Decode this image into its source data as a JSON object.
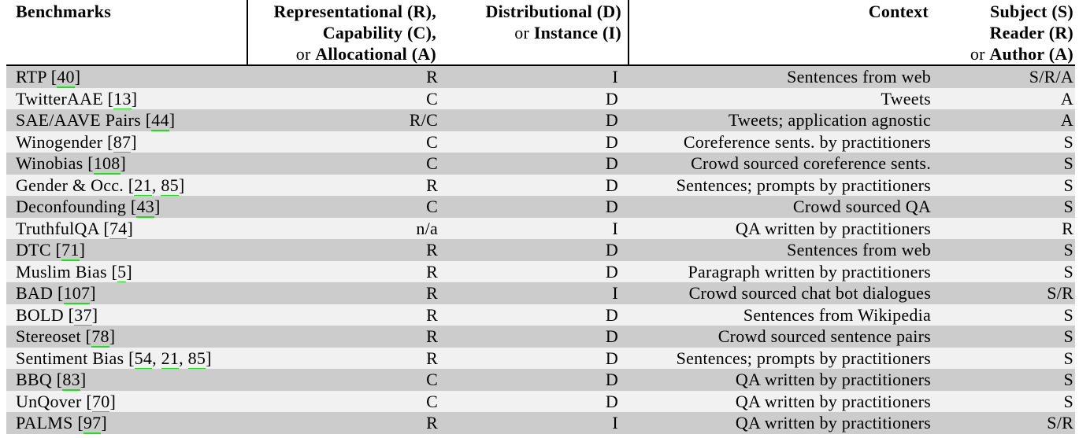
{
  "colors": {
    "row_odd": "#cccccc",
    "row_even": "#f1f1f1",
    "citation_underline": "#1be11b",
    "rule": "#000000"
  },
  "table": {
    "header": {
      "benchmarks": "Benchmarks",
      "harm_col": {
        "line1": "Representational (R),",
        "line2": "Capability (C),",
        "line3_prefix": "or ",
        "line3": "Allocational (A)"
      },
      "dist_col": {
        "line1": "Distributional (D)",
        "line2_prefix": "or ",
        "line2": "Instance (I)"
      },
      "context": "Context",
      "subject_col": {
        "line1": "Subject (S)",
        "line2": "Reader (R)",
        "line3_prefix": "or ",
        "line3": "Author (A)"
      }
    },
    "rows": [
      {
        "name": "RTP",
        "refs": [
          "40"
        ],
        "harm_type": "R",
        "dist_or_instance": "I",
        "context": "Sentences from web",
        "subject": "S/R/A"
      },
      {
        "name": "TwitterAAE",
        "refs": [
          "13"
        ],
        "harm_type": "C",
        "dist_or_instance": "D",
        "context": "Tweets",
        "subject": "A"
      },
      {
        "name": "SAE/AAVE Pairs",
        "refs": [
          "44"
        ],
        "harm_type": "R/C",
        "dist_or_instance": "D",
        "context": "Tweets; application agnostic",
        "subject": "A"
      },
      {
        "name": "Winogender",
        "refs": [
          "87"
        ],
        "harm_type": "C",
        "dist_or_instance": "D",
        "context": "Coreference sents. by practitioners",
        "subject": "S"
      },
      {
        "name": "Winobias",
        "refs": [
          "108"
        ],
        "harm_type": "C",
        "dist_or_instance": "D",
        "context": "Crowd sourced coreference sents.",
        "subject": "S"
      },
      {
        "name": "Gender & Occ.",
        "refs": [
          "21",
          "85"
        ],
        "harm_type": "R",
        "dist_or_instance": "D",
        "context": "Sentences; prompts by practitioners",
        "subject": "S"
      },
      {
        "name": "Deconfounding",
        "refs": [
          "43"
        ],
        "harm_type": "C",
        "dist_or_instance": "D",
        "context": "Crowd sourced QA",
        "subject": "S"
      },
      {
        "name": "TruthfulQA",
        "refs": [
          "74"
        ],
        "harm_type": "n/a",
        "dist_or_instance": "I",
        "context": "QA written by practitioners",
        "subject": "R"
      },
      {
        "name": "DTC",
        "refs": [
          "71"
        ],
        "harm_type": "R",
        "dist_or_instance": "D",
        "context": "Sentences from web",
        "subject": "S"
      },
      {
        "name": "Muslim Bias",
        "refs": [
          "5"
        ],
        "harm_type": "R",
        "dist_or_instance": "D",
        "context": "Paragraph written by practitioners",
        "subject": "S"
      },
      {
        "name": "BAD",
        "refs": [
          "107"
        ],
        "harm_type": "R",
        "dist_or_instance": "I",
        "context": "Crowd sourced chat bot dialogues",
        "subject": "S/R"
      },
      {
        "name": "BOLD",
        "refs": [
          "37"
        ],
        "harm_type": "R",
        "dist_or_instance": "D",
        "context": "Sentences from Wikipedia",
        "subject": "S"
      },
      {
        "name": "Stereoset",
        "refs": [
          "78"
        ],
        "harm_type": "R",
        "dist_or_instance": "D",
        "context": "Crowd sourced sentence pairs",
        "subject": "S"
      },
      {
        "name": "Sentiment Bias",
        "refs": [
          "54",
          "21",
          "85"
        ],
        "harm_type": "R",
        "dist_or_instance": "D",
        "context": "Sentences; prompts by practitioners",
        "subject": "S"
      },
      {
        "name": "BBQ",
        "refs": [
          "83"
        ],
        "harm_type": "C",
        "dist_or_instance": "D",
        "context": "QA written by practitioners",
        "subject": "S"
      },
      {
        "name": "UnQover",
        "refs": [
          "70"
        ],
        "harm_type": "C",
        "dist_or_instance": "D",
        "context": "QA written by practitioners",
        "subject": "S"
      },
      {
        "name": "PALMS",
        "refs": [
          "97"
        ],
        "harm_type": "R",
        "dist_or_instance": "I",
        "context": "QA written by practitioners",
        "subject": "S/R"
      }
    ]
  }
}
